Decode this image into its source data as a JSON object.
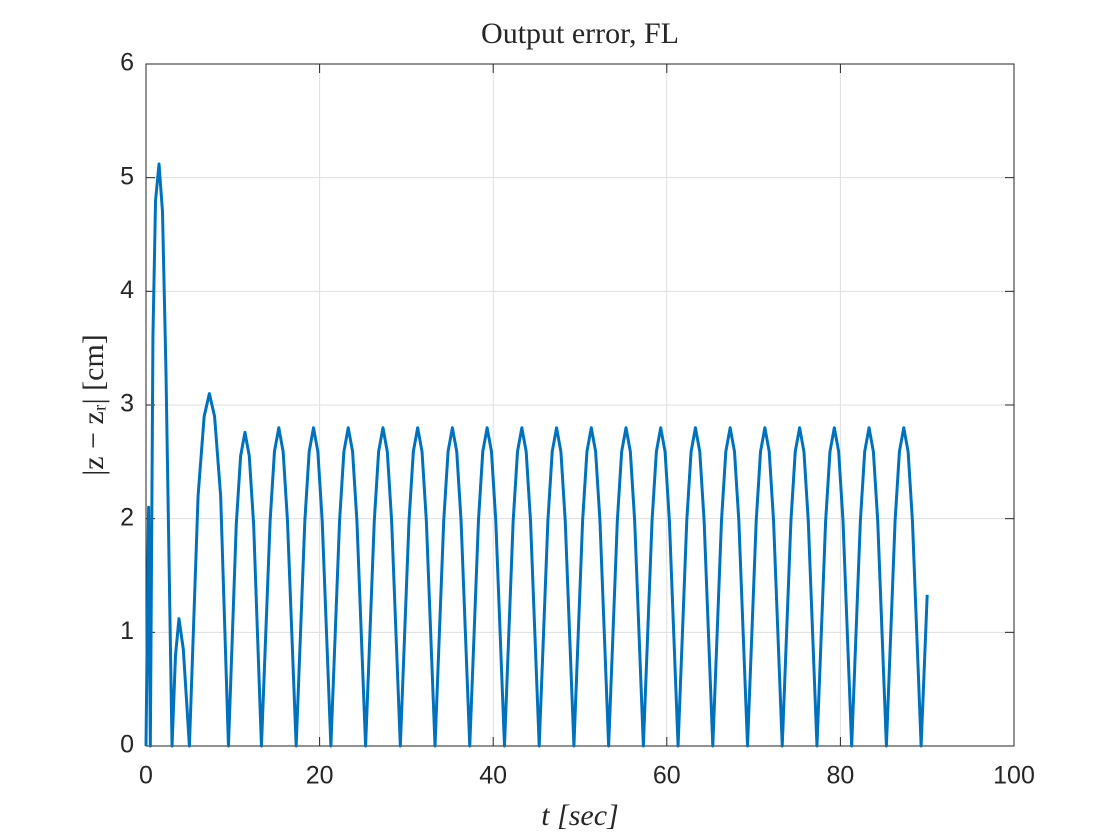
{
  "chart_data": {
    "type": "line",
    "title": "Output error, FL",
    "xlabel": "t [sec]",
    "ylabel": "|z − zᵣ| [cm]",
    "xlim": [
      0,
      100
    ],
    "ylim": [
      0,
      6
    ],
    "xticks": [
      0,
      20,
      40,
      60,
      80,
      100
    ],
    "yticks": [
      0,
      1,
      2,
      3,
      4,
      5,
      6
    ],
    "grid": true,
    "x": [
      0,
      0.3,
      0.5,
      0.8,
      1.1,
      1.5,
      1.9,
      2.3,
      3.0,
      3.4,
      3.8,
      4.3,
      5.0,
      6.0,
      6.7,
      7.3,
      7.9,
      8.6,
      9.5,
      10.4,
      10.9,
      11.4,
      11.9,
      12.4,
      13.3,
      14.3,
      14.8,
      15.3,
      15.8,
      16.3,
      17.3,
      18.3,
      18.8,
      19.3,
      19.8,
      20.3,
      21.3,
      22.3,
      22.8,
      23.3,
      23.8,
      24.3,
      25.3,
      26.3,
      26.8,
      27.3,
      27.8,
      28.3,
      29.3,
      30.3,
      30.8,
      31.3,
      31.8,
      32.3,
      33.3,
      34.3,
      34.8,
      35.3,
      35.8,
      36.3,
      37.3,
      38.3,
      38.8,
      39.3,
      39.8,
      40.3,
      41.3,
      42.3,
      42.8,
      43.3,
      43.8,
      44.3,
      45.3,
      46.3,
      46.8,
      47.3,
      47.8,
      48.3,
      49.3,
      50.3,
      50.8,
      51.3,
      51.8,
      52.3,
      53.3,
      54.3,
      54.8,
      55.3,
      55.8,
      56.3,
      57.3,
      58.3,
      58.8,
      59.3,
      59.8,
      60.3,
      61.3,
      62.3,
      62.8,
      63.3,
      63.8,
      64.3,
      65.3,
      66.3,
      66.8,
      67.3,
      67.8,
      68.3,
      69.3,
      70.3,
      70.8,
      71.3,
      71.8,
      72.3,
      73.3,
      74.3,
      74.8,
      75.3,
      75.8,
      76.3,
      77.3,
      78.3,
      78.8,
      79.3,
      79.8,
      80.3,
      81.3,
      82.3,
      82.8,
      83.3,
      83.8,
      84.3,
      85.3,
      86.3,
      86.8,
      87.3,
      87.8,
      88.3,
      89.3,
      90
    ],
    "series": [
      {
        "color": "#0072bd",
        "values": [
          0,
          2.1,
          0,
          3.6,
          4.8,
          5.12,
          4.7,
          3.3,
          0,
          0.8,
          1.12,
          0.85,
          0,
          2.2,
          2.9,
          3.1,
          2.9,
          2.2,
          0,
          1.95,
          2.55,
          2.76,
          2.55,
          1.95,
          0,
          1.98,
          2.59,
          2.8,
          2.59,
          1.98,
          0,
          1.98,
          2.59,
          2.8,
          2.59,
          1.98,
          0,
          1.98,
          2.59,
          2.8,
          2.59,
          1.98,
          0,
          1.98,
          2.59,
          2.8,
          2.59,
          1.98,
          0,
          1.98,
          2.59,
          2.8,
          2.59,
          1.98,
          0,
          1.98,
          2.59,
          2.8,
          2.59,
          1.98,
          0,
          1.98,
          2.59,
          2.8,
          2.59,
          1.98,
          0,
          1.98,
          2.59,
          2.8,
          2.59,
          1.98,
          0,
          1.98,
          2.59,
          2.8,
          2.59,
          1.98,
          0,
          1.98,
          2.59,
          2.8,
          2.59,
          1.98,
          0,
          1.98,
          2.59,
          2.8,
          2.59,
          1.98,
          0,
          1.98,
          2.59,
          2.8,
          2.59,
          1.98,
          0,
          1.98,
          2.59,
          2.8,
          2.59,
          1.98,
          0,
          1.98,
          2.59,
          2.8,
          2.59,
          1.98,
          0,
          1.98,
          2.59,
          2.8,
          2.59,
          1.98,
          0,
          1.98,
          2.59,
          2.8,
          2.59,
          1.98,
          0,
          1.98,
          2.59,
          2.8,
          2.59,
          1.98,
          0,
          1.98,
          2.59,
          2.8,
          2.59,
          1.98,
          0,
          1.98,
          2.59,
          2.8,
          2.59,
          1.98,
          0,
          1.33
        ]
      }
    ]
  }
}
